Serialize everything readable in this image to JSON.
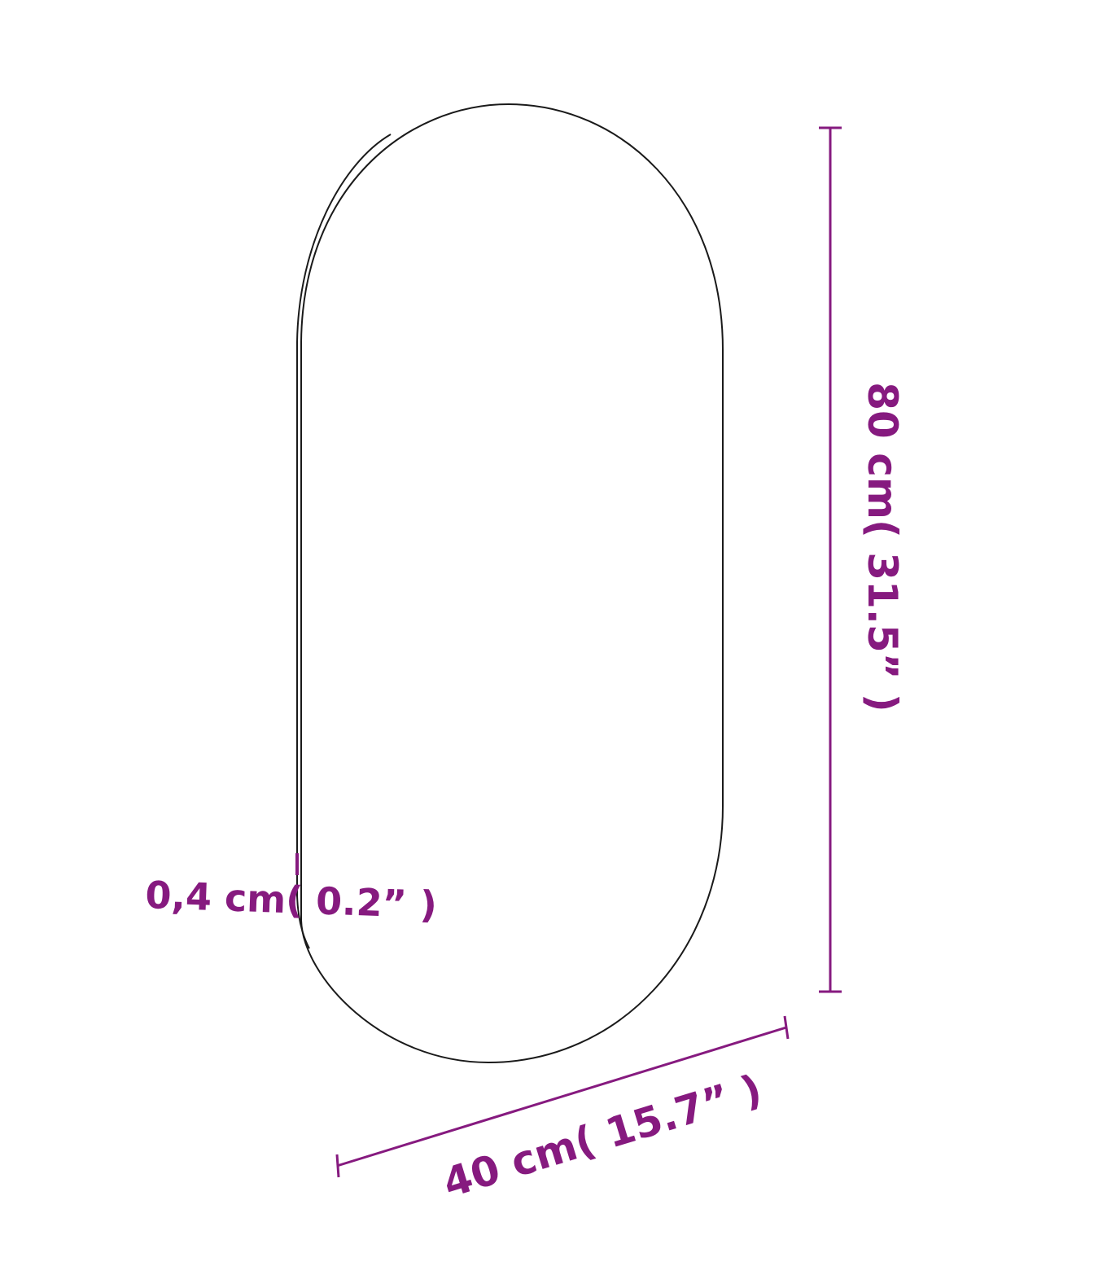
{
  "colors": {
    "dimension": "#861a7f",
    "outline": "#1a1a1a"
  },
  "dimensions": {
    "height_label": "80 cm( 31.5”  )",
    "width_label": "40 cm( 15.7”  )",
    "thickness_label": "0,4 cm( 0.2”  )"
  }
}
